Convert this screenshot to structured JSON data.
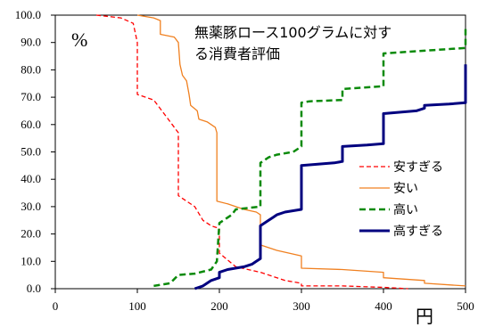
{
  "chart_data": {
    "type": "line",
    "title": "無薬豚ロース100グラムに対する消費者評価",
    "title_lines": [
      "無薬豚ロース100グラムに対す",
      "る消費者評価"
    ],
    "y_unit": "%",
    "x_unit": "円",
    "xlim": [
      0,
      500
    ],
    "ylim": [
      0,
      100
    ],
    "x_ticks": [
      "0",
      "100",
      "200",
      "300",
      "400",
      "500"
    ],
    "y_ticks": [
      "0.0",
      "10.0",
      "20.0",
      "30.0",
      "40.0",
      "50.0",
      "60.0",
      "70.0",
      "80.0",
      "90.0",
      "100.0"
    ],
    "grid": false,
    "legend_position": "right",
    "series": [
      {
        "name": "安すぎる",
        "color": "#ff0000",
        "dash": "dashed",
        "width": 1.3,
        "points": [
          [
            50,
            100
          ],
          [
            80,
            99
          ],
          [
            95,
            97
          ],
          [
            100,
            90
          ],
          [
            100,
            71
          ],
          [
            120,
            69
          ],
          [
            130,
            65
          ],
          [
            140,
            61
          ],
          [
            150,
            57
          ],
          [
            150,
            34
          ],
          [
            170,
            30
          ],
          [
            180,
            25
          ],
          [
            190,
            23
          ],
          [
            200,
            22
          ],
          [
            200,
            13
          ],
          [
            220,
            8
          ],
          [
            250,
            6
          ],
          [
            280,
            3
          ],
          [
            300,
            2
          ],
          [
            300,
            1
          ],
          [
            350,
            1
          ],
          [
            400,
            0.5
          ],
          [
            430,
            0
          ]
        ]
      },
      {
        "name": "安い",
        "color": "#f08020",
        "dash": "solid",
        "width": 1.3,
        "points": [
          [
            100,
            100
          ],
          [
            120,
            99
          ],
          [
            128,
            98
          ],
          [
            128,
            93
          ],
          [
            145,
            92
          ],
          [
            150,
            90
          ],
          [
            152,
            82
          ],
          [
            155,
            78
          ],
          [
            160,
            76
          ],
          [
            163,
            71
          ],
          [
            165,
            67
          ],
          [
            173,
            65
          ],
          [
            175,
            62
          ],
          [
            185,
            61
          ],
          [
            195,
            59
          ],
          [
            197,
            57
          ],
          [
            197,
            32
          ],
          [
            210,
            31
          ],
          [
            220,
            30
          ],
          [
            230,
            29
          ],
          [
            245,
            28
          ],
          [
            250,
            27
          ],
          [
            250,
            16
          ],
          [
            270,
            14
          ],
          [
            300,
            12
          ],
          [
            300,
            7.5
          ],
          [
            350,
            7
          ],
          [
            400,
            6
          ],
          [
            400,
            4
          ],
          [
            450,
            3
          ],
          [
            450,
            2
          ],
          [
            500,
            1
          ]
        ]
      },
      {
        "name": "高い",
        "color": "#0a8a0a",
        "dash": "dashed",
        "width": 2.5,
        "points": [
          [
            120,
            1
          ],
          [
            140,
            2
          ],
          [
            150,
            5
          ],
          [
            170,
            5.5
          ],
          [
            190,
            7
          ],
          [
            197,
            10
          ],
          [
            200,
            24
          ],
          [
            205,
            25
          ],
          [
            210,
            26
          ],
          [
            215,
            27
          ],
          [
            220,
            29
          ],
          [
            235,
            29.5
          ],
          [
            250,
            30
          ],
          [
            250,
            46
          ],
          [
            255,
            47
          ],
          [
            260,
            48
          ],
          [
            270,
            49
          ],
          [
            290,
            50
          ],
          [
            300,
            52
          ],
          [
            300,
            68
          ],
          [
            310,
            68.5
          ],
          [
            350,
            69
          ],
          [
            350,
            73
          ],
          [
            400,
            74
          ],
          [
            400,
            86
          ],
          [
            450,
            87
          ],
          [
            500,
            88
          ],
          [
            500,
            95
          ]
        ]
      },
      {
        "name": "高すぎる",
        "color": "#00007f",
        "dash": "solid",
        "width": 3,
        "points": [
          [
            170,
            0
          ],
          [
            180,
            1
          ],
          [
            190,
            3
          ],
          [
            200,
            4
          ],
          [
            200,
            6
          ],
          [
            210,
            7
          ],
          [
            230,
            8
          ],
          [
            240,
            9
          ],
          [
            245,
            10
          ],
          [
            250,
            11
          ],
          [
            250,
            23
          ],
          [
            260,
            25
          ],
          [
            265,
            26
          ],
          [
            270,
            27
          ],
          [
            280,
            28
          ],
          [
            290,
            28.5
          ],
          [
            300,
            29
          ],
          [
            300,
            45
          ],
          [
            320,
            45.5
          ],
          [
            340,
            46
          ],
          [
            350,
            46.5
          ],
          [
            350,
            52
          ],
          [
            380,
            52.5
          ],
          [
            400,
            53
          ],
          [
            400,
            64
          ],
          [
            440,
            65
          ],
          [
            450,
            66
          ],
          [
            450,
            67
          ],
          [
            480,
            67.5
          ],
          [
            500,
            68
          ],
          [
            500,
            82
          ]
        ]
      }
    ]
  }
}
